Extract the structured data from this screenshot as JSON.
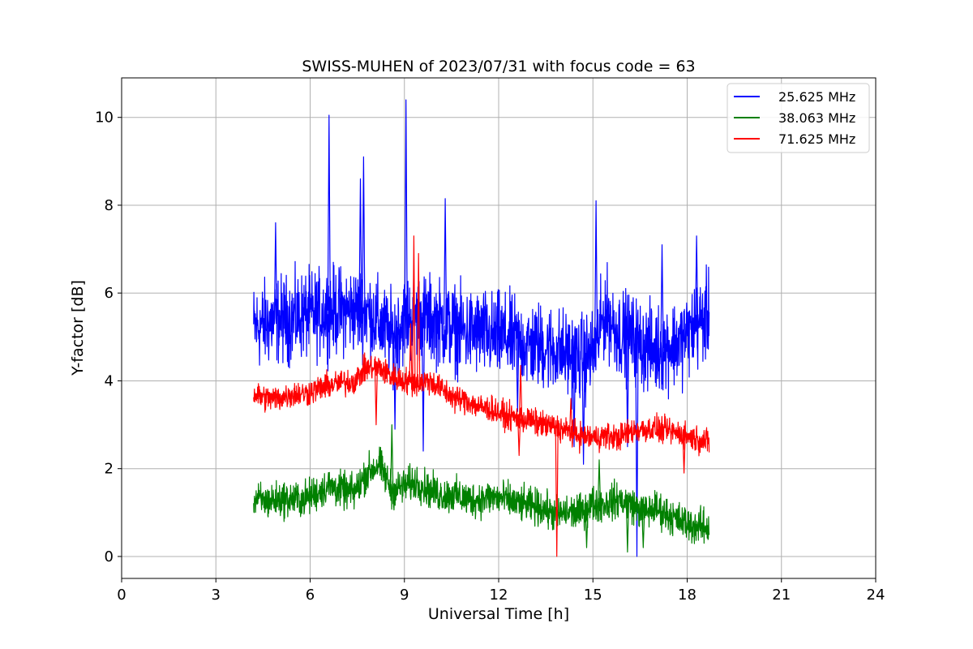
{
  "chart_data": {
    "type": "line",
    "title": "SWISS-MUHEN of 2023/07/31 with focus code = 63",
    "xlabel": "Universal Time [h]",
    "ylabel": "Y-factor [dB]",
    "xlim": [
      0,
      24
    ],
    "ylim": [
      -0.5,
      10.9
    ],
    "xticks": [
      0,
      3,
      6,
      9,
      12,
      15,
      18,
      21,
      24
    ],
    "yticks": [
      0,
      2,
      4,
      6,
      8,
      10
    ],
    "grid": true,
    "legend_position": "top-right",
    "series": [
      {
        "name": "25.625 MHz",
        "color": "#0000ff",
        "x": [
          4.2,
          4.6,
          5.0,
          5.4,
          5.8,
          6.2,
          6.6,
          7.0,
          7.4,
          7.8,
          8.2,
          8.6,
          9.0,
          9.4,
          9.8,
          10.2,
          10.6,
          11.0,
          11.4,
          11.8,
          12.2,
          12.6,
          13.0,
          13.4,
          13.8,
          14.2,
          14.6,
          15.0,
          15.4,
          15.8,
          16.2,
          16.6,
          17.0,
          17.4,
          17.8,
          18.2,
          18.7
        ],
        "y": [
          5.2,
          5.3,
          5.4,
          5.4,
          5.5,
          5.5,
          5.6,
          5.6,
          5.6,
          5.6,
          5.3,
          5.0,
          5.4,
          5.5,
          5.4,
          5.3,
          5.2,
          5.1,
          5.1,
          5.0,
          5.0,
          4.9,
          4.8,
          4.8,
          4.7,
          4.6,
          4.5,
          4.6,
          5.6,
          5.1,
          5.0,
          4.8,
          4.7,
          4.8,
          4.9,
          5.2,
          5.5
        ],
        "spread": 1.8,
        "spikes": [
          [
            6.6,
            10.05
          ],
          [
            7.7,
            9.1
          ],
          [
            7.6,
            8.6
          ],
          [
            9.05,
            10.4
          ],
          [
            10.3,
            8.15
          ],
          [
            15.1,
            8.1
          ],
          [
            17.2,
            7.1
          ],
          [
            18.3,
            7.3
          ],
          [
            4.9,
            7.6
          ],
          [
            8.7,
            2.9
          ],
          [
            9.6,
            2.4
          ],
          [
            14.7,
            2.1
          ],
          [
            16.4,
            0.0
          ],
          [
            16.1,
            2.5
          ],
          [
            12.6,
            3.3
          ],
          [
            14.4,
            2.5
          ]
        ]
      },
      {
        "name": "38.063 MHz",
        "color": "#008000",
        "x": [
          4.2,
          4.6,
          5.0,
          5.4,
          5.8,
          6.2,
          6.6,
          7.0,
          7.4,
          7.8,
          8.2,
          8.6,
          9.0,
          9.4,
          9.8,
          10.2,
          10.6,
          11.0,
          11.4,
          11.8,
          12.2,
          12.6,
          13.0,
          13.4,
          13.8,
          14.2,
          14.6,
          15.0,
          15.4,
          15.8,
          16.2,
          16.6,
          17.0,
          17.4,
          17.8,
          18.2,
          18.7
        ],
        "y": [
          1.3,
          1.25,
          1.3,
          1.3,
          1.3,
          1.45,
          1.6,
          1.5,
          1.45,
          1.9,
          2.1,
          1.5,
          1.6,
          1.7,
          1.5,
          1.4,
          1.4,
          1.3,
          1.3,
          1.35,
          1.3,
          1.2,
          1.15,
          1.1,
          0.95,
          1.0,
          1.0,
          1.2,
          1.2,
          1.3,
          1.2,
          1.0,
          1.1,
          0.95,
          0.8,
          0.7,
          0.65
        ],
        "spread": 0.75,
        "spikes": [
          [
            8.6,
            3.0
          ],
          [
            15.2,
            2.2
          ],
          [
            14.8,
            0.2
          ],
          [
            16.1,
            0.1
          ],
          [
            16.6,
            0.2
          ]
        ]
      },
      {
        "name": "71.625 MHz",
        "color": "#ff0000",
        "x": [
          4.2,
          4.6,
          5.0,
          5.4,
          5.8,
          6.2,
          6.6,
          7.0,
          7.4,
          7.8,
          8.2,
          8.6,
          9.0,
          9.4,
          9.8,
          10.2,
          10.6,
          11.0,
          11.4,
          11.8,
          12.2,
          12.6,
          13.0,
          13.4,
          13.8,
          14.2,
          14.6,
          15.0,
          15.4,
          15.8,
          16.2,
          16.6,
          17.0,
          17.4,
          17.8,
          18.2,
          18.7
        ],
        "y": [
          3.7,
          3.6,
          3.6,
          3.7,
          3.7,
          3.8,
          3.9,
          3.95,
          4.0,
          4.3,
          4.3,
          4.1,
          4.0,
          3.95,
          4.0,
          3.8,
          3.6,
          3.55,
          3.4,
          3.35,
          3.2,
          3.15,
          3.1,
          3.0,
          2.95,
          2.85,
          2.75,
          2.7,
          2.75,
          2.7,
          2.85,
          2.9,
          2.9,
          2.85,
          2.8,
          2.7,
          2.6
        ],
        "spread": 0.55,
        "spikes": [
          [
            9.3,
            7.3
          ],
          [
            9.45,
            6.9
          ],
          [
            9.2,
            5.3
          ],
          [
            12.7,
            4.35
          ],
          [
            12.65,
            2.3
          ],
          [
            8.1,
            3.0
          ],
          [
            13.85,
            0.0
          ],
          [
            14.3,
            3.6
          ],
          [
            17.9,
            1.9
          ]
        ]
      }
    ]
  }
}
